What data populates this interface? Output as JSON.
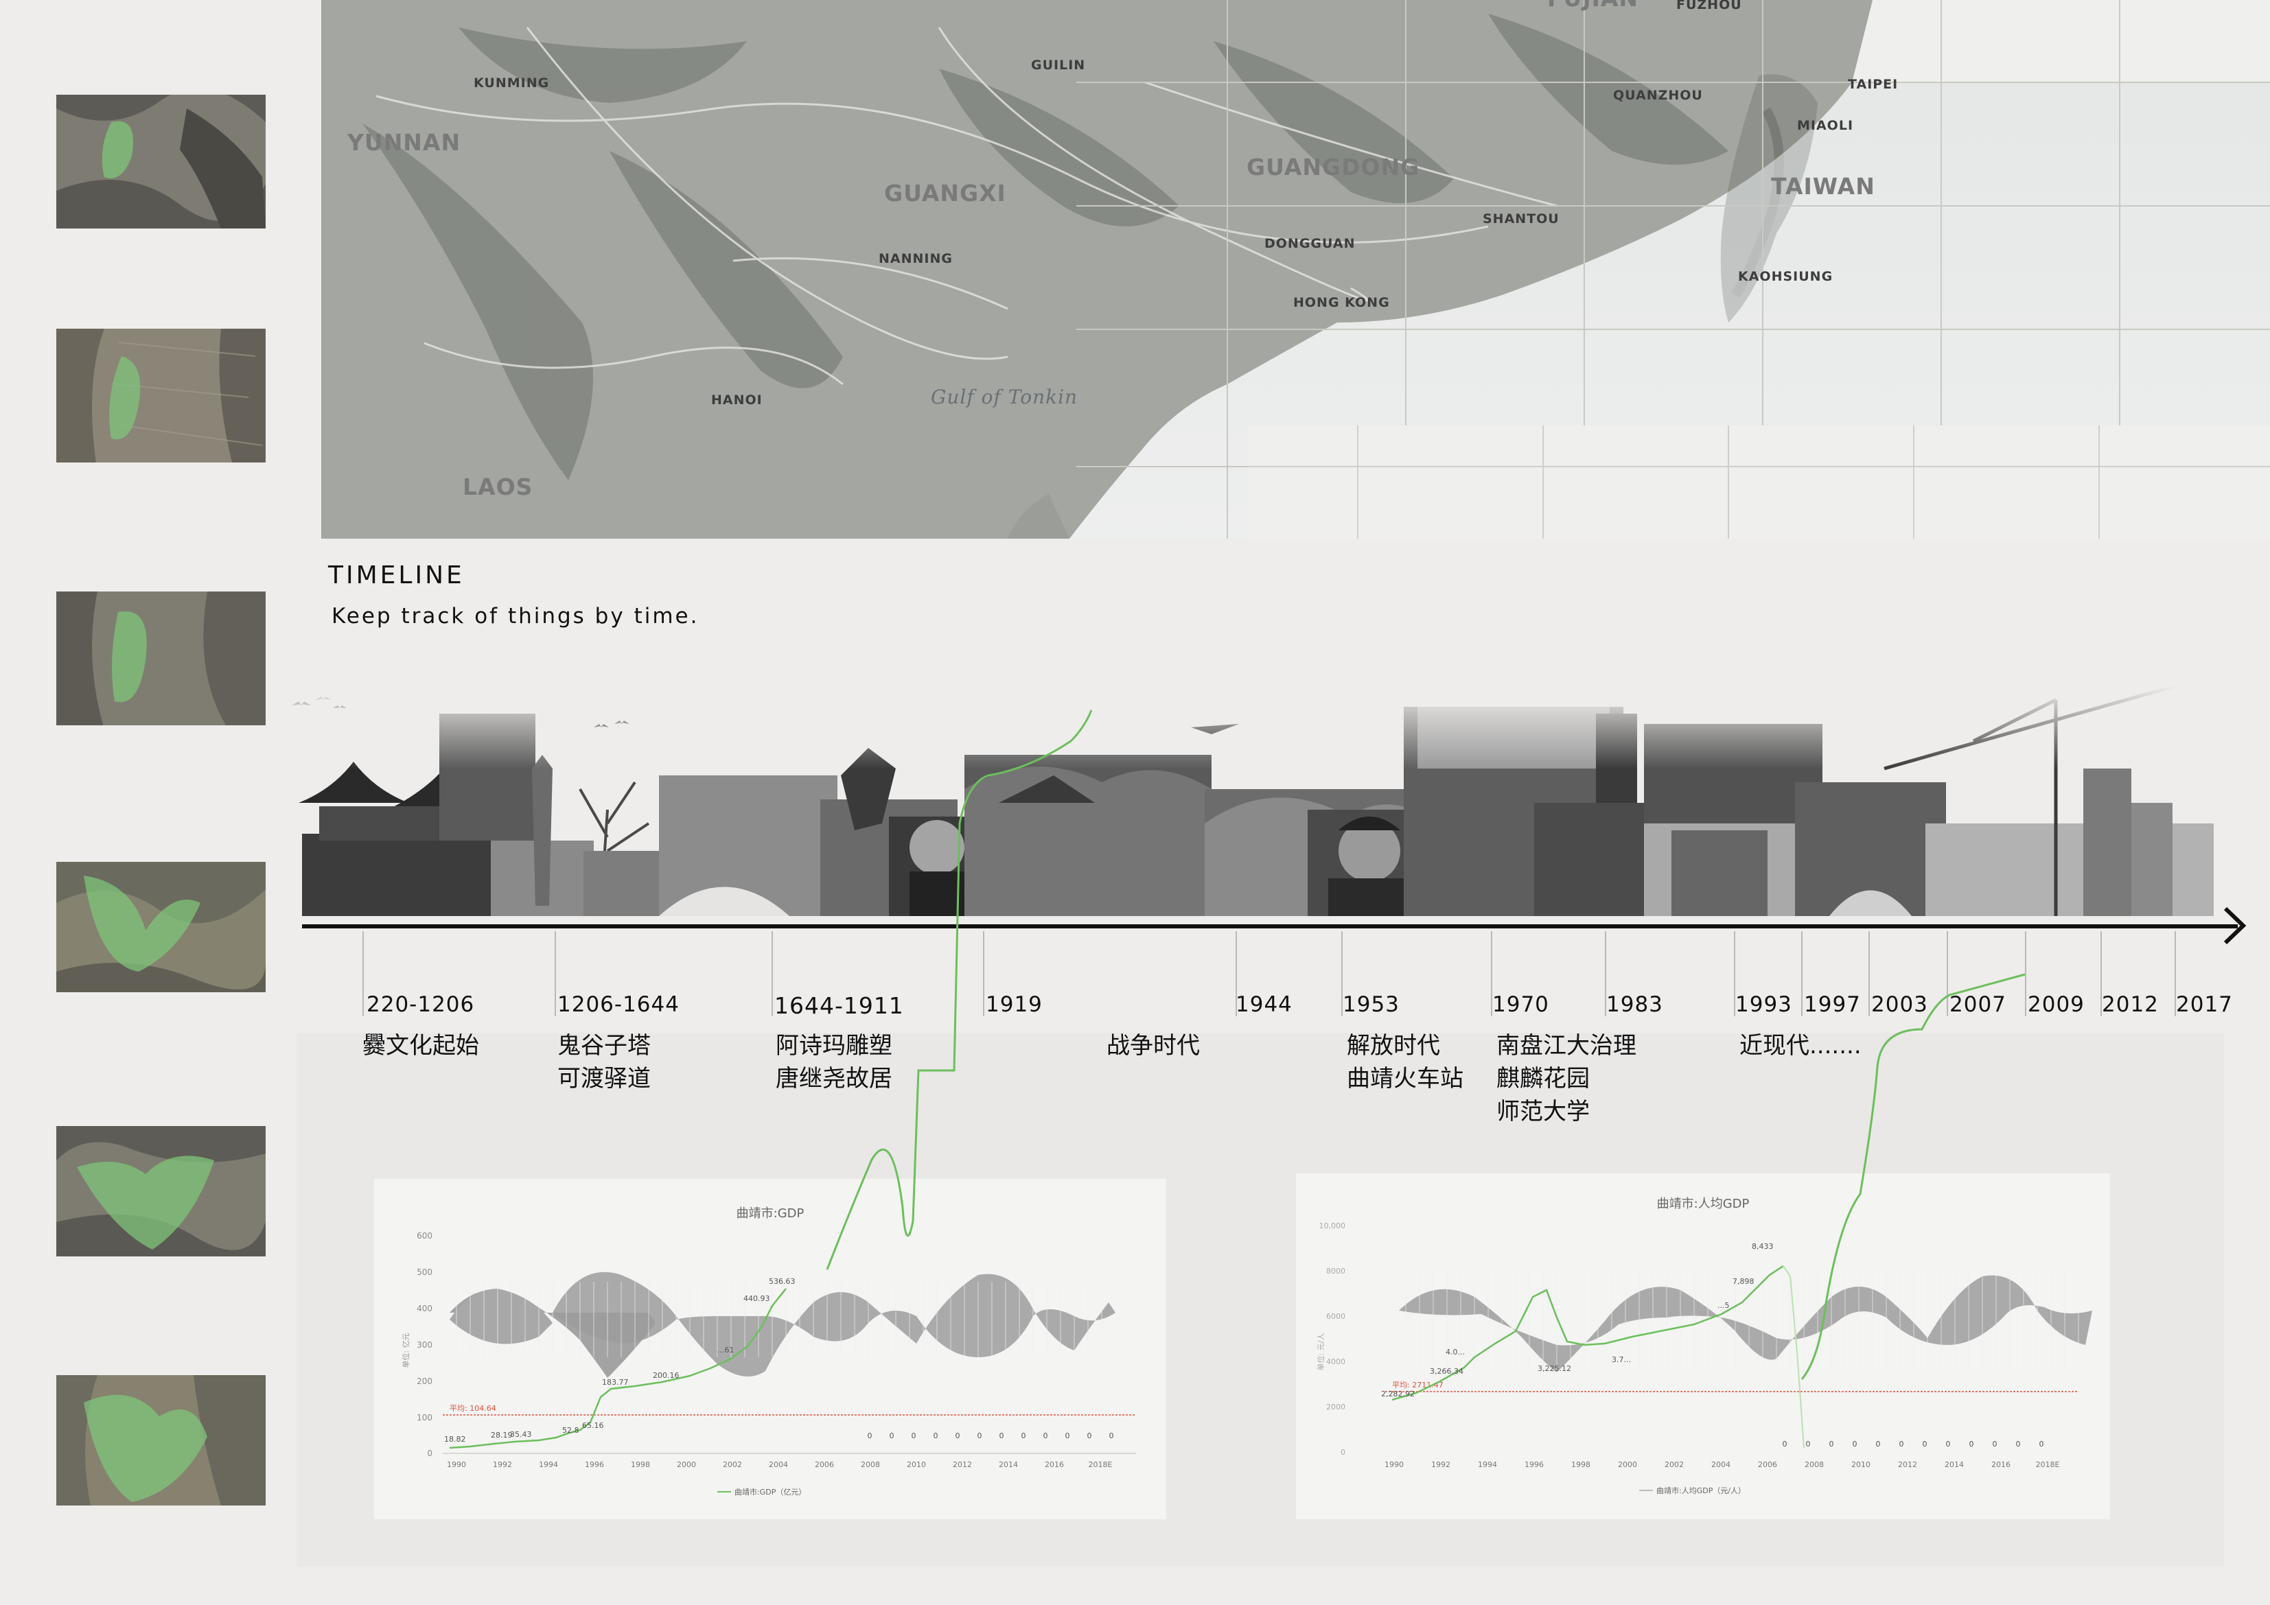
{
  "map": {
    "labels": [
      {
        "text": "KUNMING",
        "size": "small"
      },
      {
        "text": "YUNNAN",
        "size": "big"
      },
      {
        "text": "GUILIN",
        "size": "small"
      },
      {
        "text": "GUANGXI",
        "size": "big"
      },
      {
        "text": "NANNING",
        "size": "small"
      },
      {
        "text": "GUANGDONG",
        "size": "big"
      },
      {
        "text": "DONGGUAN",
        "size": "small"
      },
      {
        "text": "HONG KONG",
        "size": "small"
      },
      {
        "text": "SHANTOU",
        "size": "small"
      },
      {
        "text": "QUANZHOU",
        "size": "small"
      },
      {
        "text": "FUZHOU",
        "size": "small"
      },
      {
        "text": "FUJIAN",
        "size": "big"
      },
      {
        "text": "TAIPEI",
        "size": "small"
      },
      {
        "text": "MIAOLI",
        "size": "small"
      },
      {
        "text": "TAIWAN",
        "size": "big"
      },
      {
        "text": "KAOHSIUNG",
        "size": "small"
      },
      {
        "text": "HANOI",
        "size": "small"
      },
      {
        "text": "Gulf of Tonkin",
        "size": "sea"
      },
      {
        "text": "LAOS",
        "size": "big"
      }
    ]
  },
  "timeline": {
    "title": "TIMELINE",
    "subtitle": "Keep track of things by time.",
    "years": [
      "220-1206",
      "1206-1644",
      "1644-1911",
      "1919",
      "1944",
      "1953",
      "1970",
      "1983",
      "1993",
      "1997",
      "2003",
      "2007",
      "2009",
      "2012",
      "2017"
    ],
    "events": [
      [
        "爨文化起始"
      ],
      [
        "鬼谷子塔",
        "可渡驿道"
      ],
      [
        "阿诗玛雕塑",
        "唐继尧故居"
      ],
      [
        "战争时代"
      ],
      [
        "解放时代",
        "曲靖火车站"
      ],
      [
        "南盘江大治理",
        "麒麟花园",
        "师范大学"
      ],
      [
        "近现代......."
      ]
    ]
  },
  "charts": [
    {
      "title": "曲靖市:GDP",
      "yticks": [
        "0",
        "100",
        "200",
        "300",
        "400",
        "500",
        "600"
      ],
      "xticks": [
        "1990",
        "1992",
        "1994",
        "1996",
        "1998",
        "2000",
        "2002",
        "2004",
        "2006",
        "2008",
        "2010",
        "2012",
        "2014",
        "2016",
        "2018E"
      ],
      "ylabel": "单位: 亿元",
      "avg_label": "平均: 104.64",
      "point_labels": [
        "18.82",
        "28.19",
        "35.43",
        "52.8",
        "65.16",
        "183.77",
        "200.16",
        "...61",
        "440.93",
        "536.63"
      ],
      "zeros": [
        "0",
        "0",
        "0",
        "0",
        "0",
        "0",
        "0",
        "0",
        "0",
        "0",
        "0",
        "0"
      ],
      "legend": "曲靖市:GDP（亿元）"
    },
    {
      "title": "曲靖市:人均GDP",
      "yticks": [
        "0",
        "2000",
        "4000",
        "6000",
        "8000",
        "10,000"
      ],
      "xticks": [
        "1990",
        "1992",
        "1994",
        "1996",
        "1998",
        "2000",
        "2002",
        "2004",
        "2006",
        "2008",
        "2010",
        "2012",
        "2014",
        "2016",
        "2018E"
      ],
      "ylabel": "单位: 元/人",
      "avg_label": "平均: 2711.47",
      "point_labels": [
        "2,282.92",
        "3,266.34",
        "4.0...",
        "3,225.12",
        "3.7...",
        "...5",
        "7,898",
        "8,433"
      ],
      "zeros": [
        "0",
        "0",
        "0",
        "0",
        "0",
        "0",
        "0",
        "0",
        "0",
        "0",
        "0",
        "0"
      ],
      "legend": "曲靖市:人均GDP（元/人）"
    }
  ],
  "colors": {
    "background": "#efedeb",
    "green_line": "#6cbf5c",
    "avg_line": "#e0533c",
    "axis": "#111111"
  }
}
